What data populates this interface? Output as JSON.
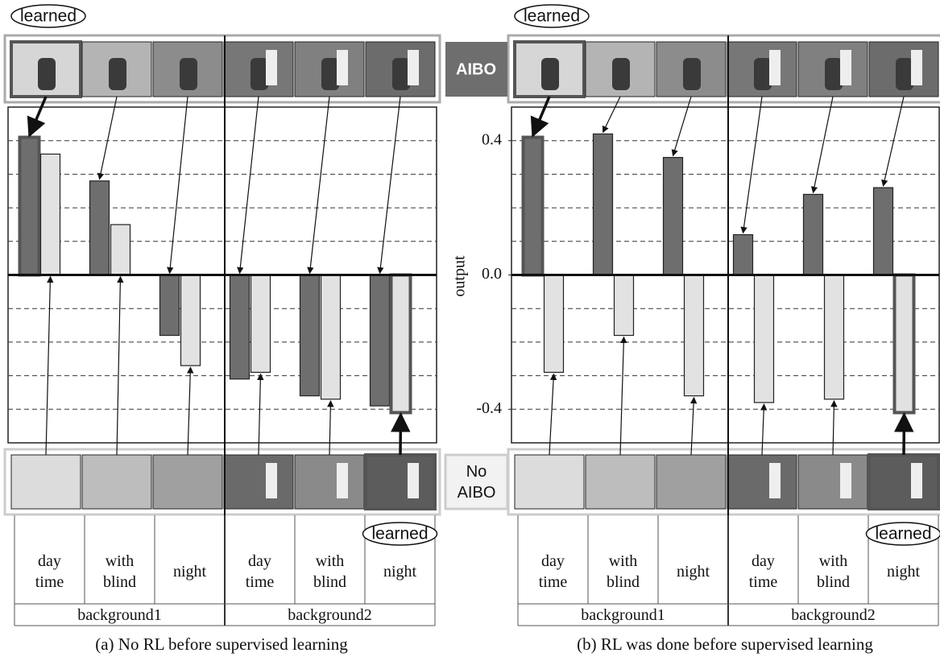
{
  "chart_data": [
    {
      "type": "bar",
      "title": "(a) No RL before supervised learning",
      "categories": [
        "day time",
        "with blind",
        "night",
        "day time",
        "with blind",
        "night"
      ],
      "groups": [
        "background1",
        "background2"
      ],
      "series": [
        {
          "name": "AIBO",
          "color": "#6e6e6e",
          "values": [
            0.41,
            0.28,
            -0.18,
            -0.31,
            -0.36,
            -0.39
          ]
        },
        {
          "name": "No AIBO",
          "color": "#e2e2e2",
          "values": [
            0.36,
            0.15,
            -0.27,
            -0.29,
            -0.37,
            -0.41
          ]
        }
      ],
      "ylim": [
        -0.5,
        0.5
      ],
      "ygrid": [
        -0.4,
        -0.3,
        -0.2,
        -0.1,
        0.1,
        0.2,
        0.3,
        0.4
      ],
      "annotations": [
        "learned",
        "learned"
      ]
    },
    {
      "type": "bar",
      "title": "(b) RL was done before supervised learning",
      "categories": [
        "day time",
        "with blind",
        "night",
        "day time",
        "with blind",
        "night"
      ],
      "groups": [
        "background1",
        "background2"
      ],
      "series": [
        {
          "color": "#6e6e6e",
          "values": [
            0.41,
            0.42,
            0.35,
            0.12,
            0.24,
            0.26
          ]
        },
        {
          "color": "#e2e2e2",
          "values": [
            -0.29,
            -0.18,
            -0.36,
            -0.38,
            -0.37,
            -0.41
          ]
        }
      ],
      "ylim": [
        -0.5,
        0.5
      ],
      "ygrid": [
        -0.4,
        -0.3,
        -0.2,
        -0.1,
        0.1,
        0.2,
        0.3,
        0.4
      ],
      "yticks": [
        0.4,
        {
          "value": 0,
          "label": "0.0"
        },
        -0.4
      ],
      "ylabel": "output",
      "annotations": [
        "learned",
        "learned"
      ]
    }
  ]
}
